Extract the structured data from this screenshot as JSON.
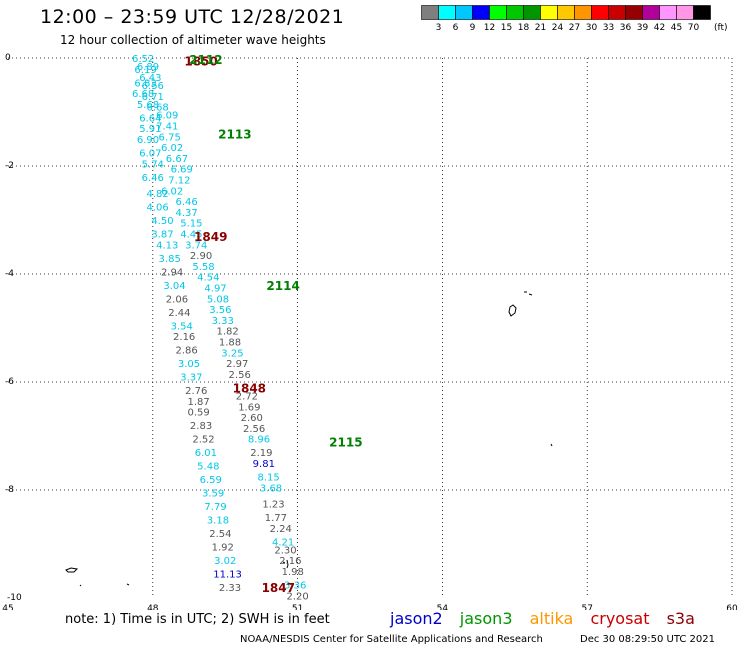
{
  "header": {
    "title": "12:00 – 23:59 UTC 12/28/2021",
    "subtitle": "12 hour collection of altimeter wave heights"
  },
  "colorbar": {
    "unit": "(ft)",
    "labels": [
      "3",
      "6",
      "9",
      "12",
      "15",
      "18",
      "21",
      "24",
      "27",
      "30",
      "33",
      "36",
      "39",
      "42",
      "45",
      "70"
    ],
    "colors": [
      "#7f7f7f",
      "#00ffff",
      "#00c8ff",
      "#0000ff",
      "#00ff00",
      "#00c800",
      "#009600",
      "#ffff00",
      "#ffc800",
      "#ff9600",
      "#ff0000",
      "#c80000",
      "#960000",
      "#b4009b",
      "#ff96ff",
      "#ff96e6",
      "#000000"
    ]
  },
  "axes": {
    "x_ticks": [
      "45",
      "48",
      "51",
      "54",
      "57",
      "60"
    ],
    "y_ticks": [
      "0",
      "-2",
      "-4",
      "-6",
      "-8",
      "-10"
    ]
  },
  "map": {
    "lon_min": 45,
    "lon_max": 60,
    "lat_min": -10,
    "lat_max": 0,
    "pass_labels": [
      {
        "text": "1850",
        "lon": 49.0,
        "lat": -0.05,
        "color": "#8b0000"
      },
      {
        "text": "2112",
        "lon": 49.1,
        "lat": -0.02,
        "color": "#008000"
      },
      {
        "text": "2113",
        "lon": 49.7,
        "lat": -1.4,
        "color": "#008000"
      },
      {
        "text": "1849",
        "lon": 49.2,
        "lat": -3.3,
        "color": "#8b0000"
      },
      {
        "text": "2114",
        "lon": 50.7,
        "lat": -4.2,
        "color": "#008000"
      },
      {
        "text": "1848",
        "lon": 50.0,
        "lat": -6.1,
        "color": "#8b0000"
      },
      {
        "text": "2115",
        "lon": 52.0,
        "lat": -7.1,
        "color": "#008000"
      },
      {
        "text": "1847",
        "lon": 50.6,
        "lat": -9.8,
        "color": "#8b0000"
      }
    ],
    "values": [
      {
        "t": "6.52",
        "lon": 47.8,
        "lat": 0.0,
        "c": "#00c8e6"
      },
      {
        "t": "6.19",
        "lon": 47.85,
        "lat": -0.2,
        "c": "#00c8e6"
      },
      {
        "t": "6.89",
        "lon": 47.9,
        "lat": -0.15,
        "c": "#00c8e6"
      },
      {
        "t": "6.43",
        "lon": 47.95,
        "lat": -0.35,
        "c": "#00c8e6"
      },
      {
        "t": "6.83",
        "lon": 47.85,
        "lat": -0.45,
        "c": "#00c8e6"
      },
      {
        "t": "6.56",
        "lon": 48.0,
        "lat": -0.5,
        "c": "#00c8e6"
      },
      {
        "t": "6.68",
        "lon": 47.8,
        "lat": -0.65,
        "c": "#00c8e6"
      },
      {
        "t": "6.71",
        "lon": 48.0,
        "lat": -0.7,
        "c": "#00c8e6"
      },
      {
        "t": "5.68",
        "lon": 47.9,
        "lat": -0.85,
        "c": "#00c8e6"
      },
      {
        "t": "6.68",
        "lon": 48.1,
        "lat": -0.9,
        "c": "#00c8e6"
      },
      {
        "t": "6.64",
        "lon": 47.95,
        "lat": -1.1,
        "c": "#00c8e6"
      },
      {
        "t": "6.09",
        "lon": 48.3,
        "lat": -1.05,
        "c": "#00c8e6"
      },
      {
        "t": "5.91",
        "lon": 47.95,
        "lat": -1.3,
        "c": "#00c8e6"
      },
      {
        "t": "7.41",
        "lon": 48.3,
        "lat": -1.25,
        "c": "#00c8e6"
      },
      {
        "t": "6.90",
        "lon": 47.9,
        "lat": -1.5,
        "c": "#00c8e6"
      },
      {
        "t": "6.75",
        "lon": 48.35,
        "lat": -1.45,
        "c": "#00c8e6"
      },
      {
        "t": "6.07",
        "lon": 47.95,
        "lat": -1.75,
        "c": "#00c8e6"
      },
      {
        "t": "6.02",
        "lon": 48.4,
        "lat": -1.65,
        "c": "#00c8e6"
      },
      {
        "t": "5.74",
        "lon": 48.0,
        "lat": -1.95,
        "c": "#00c8e6"
      },
      {
        "t": "6.67",
        "lon": 48.5,
        "lat": -1.85,
        "c": "#00c8e6"
      },
      {
        "t": "6.69",
        "lon": 48.6,
        "lat": -2.05,
        "c": "#00c8e6"
      },
      {
        "t": "6.46",
        "lon": 48.0,
        "lat": -2.2,
        "c": "#00c8e6"
      },
      {
        "t": "7.12",
        "lon": 48.55,
        "lat": -2.25,
        "c": "#00c8e6"
      },
      {
        "t": "4.82",
        "lon": 48.1,
        "lat": -2.5,
        "c": "#00c8e6"
      },
      {
        "t": "6.02",
        "lon": 48.4,
        "lat": -2.45,
        "c": "#00c8e6"
      },
      {
        "t": "6.46",
        "lon": 48.7,
        "lat": -2.65,
        "c": "#00c8e6"
      },
      {
        "t": "4.06",
        "lon": 48.1,
        "lat": -2.75,
        "c": "#00c8e6"
      },
      {
        "t": "4.37",
        "lon": 48.7,
        "lat": -2.85,
        "c": "#00c8e6"
      },
      {
        "t": "4.50",
        "lon": 48.2,
        "lat": -3.0,
        "c": "#00c8e6"
      },
      {
        "t": "5.15",
        "lon": 48.8,
        "lat": -3.05,
        "c": "#00c8e6"
      },
      {
        "t": "3.87",
        "lon": 48.2,
        "lat": -3.25,
        "c": "#00c8e6"
      },
      {
        "t": "4.45",
        "lon": 48.8,
        "lat": -3.25,
        "c": "#00c8e6"
      },
      {
        "t": "4.13",
        "lon": 48.3,
        "lat": -3.45,
        "c": "#00c8e6"
      },
      {
        "t": "3.74",
        "lon": 48.9,
        "lat": -3.45,
        "c": "#00c8e6"
      },
      {
        "t": "2.90",
        "lon": 49.0,
        "lat": -3.65,
        "c": "#555555"
      },
      {
        "t": "3.85",
        "lon": 48.35,
        "lat": -3.7,
        "c": "#00c8e6"
      },
      {
        "t": "5.58",
        "lon": 49.05,
        "lat": -3.85,
        "c": "#00c8e6"
      },
      {
        "t": "2.94",
        "lon": 48.4,
        "lat": -3.95,
        "c": "#555555"
      },
      {
        "t": "4.54",
        "lon": 49.15,
        "lat": -4.05,
        "c": "#00c8e6"
      },
      {
        "t": "3.04",
        "lon": 48.45,
        "lat": -4.2,
        "c": "#00c8e6"
      },
      {
        "t": "4.97",
        "lon": 49.3,
        "lat": -4.25,
        "c": "#00c8e6"
      },
      {
        "t": "2.06",
        "lon": 48.5,
        "lat": -4.45,
        "c": "#555555"
      },
      {
        "t": "5.08",
        "lon": 49.35,
        "lat": -4.45,
        "c": "#00c8e6"
      },
      {
        "t": "2.44",
        "lon": 48.55,
        "lat": -4.7,
        "c": "#555555"
      },
      {
        "t": "3.56",
        "lon": 49.4,
        "lat": -4.65,
        "c": "#00c8e6"
      },
      {
        "t": "3.33",
        "lon": 49.45,
        "lat": -4.85,
        "c": "#00c8e6"
      },
      {
        "t": "3.54",
        "lon": 48.6,
        "lat": -4.95,
        "c": "#00c8e6"
      },
      {
        "t": "1.82",
        "lon": 49.55,
        "lat": -5.05,
        "c": "#555555"
      },
      {
        "t": "2.16",
        "lon": 48.65,
        "lat": -5.15,
        "c": "#555555"
      },
      {
        "t": "1.88",
        "lon": 49.6,
        "lat": -5.25,
        "c": "#555555"
      },
      {
        "t": "2.86",
        "lon": 48.7,
        "lat": -5.4,
        "c": "#555555"
      },
      {
        "t": "3.25",
        "lon": 49.65,
        "lat": -5.45,
        "c": "#00c8e6"
      },
      {
        "t": "2.97",
        "lon": 49.75,
        "lat": -5.65,
        "c": "#555555"
      },
      {
        "t": "3.05",
        "lon": 48.75,
        "lat": -5.65,
        "c": "#00c8e6"
      },
      {
        "t": "2.56",
        "lon": 49.8,
        "lat": -5.85,
        "c": "#555555"
      },
      {
        "t": "3.37",
        "lon": 48.8,
        "lat": -5.9,
        "c": "#00c8e6"
      },
      {
        "t": "2.76",
        "lon": 48.9,
        "lat": -6.15,
        "c": "#555555"
      },
      {
        "t": "2.72",
        "lon": 49.95,
        "lat": -6.25,
        "c": "#555555"
      },
      {
        "t": "1.87",
        "lon": 48.95,
        "lat": -6.35,
        "c": "#555555"
      },
      {
        "t": "1.69",
        "lon": 50.0,
        "lat": -6.45,
        "c": "#555555"
      },
      {
        "t": "0.59",
        "lon": 48.95,
        "lat": -6.55,
        "c": "#555555"
      },
      {
        "t": "2.60",
        "lon": 50.05,
        "lat": -6.65,
        "c": "#555555"
      },
      {
        "t": "2.83",
        "lon": 49.0,
        "lat": -6.8,
        "c": "#555555"
      },
      {
        "t": "2.56",
        "lon": 50.1,
        "lat": -6.85,
        "c": "#555555"
      },
      {
        "t": "2.52",
        "lon": 49.05,
        "lat": -7.05,
        "c": "#555555"
      },
      {
        "t": "8.96",
        "lon": 50.2,
        "lat": -7.05,
        "c": "#00c8e6"
      },
      {
        "t": "6.01",
        "lon": 49.1,
        "lat": -7.3,
        "c": "#00c8e6"
      },
      {
        "t": "2.19",
        "lon": 50.25,
        "lat": -7.3,
        "c": "#555555"
      },
      {
        "t": "9.81",
        "lon": 50.3,
        "lat": -7.5,
        "c": "#0000c8"
      },
      {
        "t": "5.48",
        "lon": 49.15,
        "lat": -7.55,
        "c": "#00c8e6"
      },
      {
        "t": "6.59",
        "lon": 49.2,
        "lat": -7.8,
        "c": "#00c8e6"
      },
      {
        "t": "8.15",
        "lon": 50.4,
        "lat": -7.75,
        "c": "#00c8e6"
      },
      {
        "t": "3.59",
        "lon": 49.25,
        "lat": -8.05,
        "c": "#00c8e6"
      },
      {
        "t": "3.68",
        "lon": 50.45,
        "lat": -7.95,
        "c": "#00c8e6"
      },
      {
        "t": "1.23",
        "lon": 50.5,
        "lat": -8.25,
        "c": "#555555"
      },
      {
        "t": "7.79",
        "lon": 49.3,
        "lat": -8.3,
        "c": "#00c8e6"
      },
      {
        "t": "1.77",
        "lon": 50.55,
        "lat": -8.5,
        "c": "#555555"
      },
      {
        "t": "3.18",
        "lon": 49.35,
        "lat": -8.55,
        "c": "#00c8e6"
      },
      {
        "t": "2.24",
        "lon": 50.65,
        "lat": -8.7,
        "c": "#555555"
      },
      {
        "t": "2.54",
        "lon": 49.4,
        "lat": -8.8,
        "c": "#555555"
      },
      {
        "t": "4.21",
        "lon": 50.7,
        "lat": -8.95,
        "c": "#00c8e6"
      },
      {
        "t": "1.92",
        "lon": 49.45,
        "lat": -9.05,
        "c": "#555555"
      },
      {
        "t": "2.30",
        "lon": 50.75,
        "lat": -9.1,
        "c": "#555555"
      },
      {
        "t": "3.02",
        "lon": 49.5,
        "lat": -9.3,
        "c": "#00c8e6"
      },
      {
        "t": "2.16",
        "lon": 50.85,
        "lat": -9.3,
        "c": "#555555"
      },
      {
        "t": "11.13",
        "lon": 49.55,
        "lat": -9.55,
        "c": "#0000c8"
      },
      {
        "t": "1.98",
        "lon": 50.9,
        "lat": -9.5,
        "c": "#555555"
      },
      {
        "t": "2.33",
        "lon": 49.6,
        "lat": -9.8,
        "c": "#555555"
      },
      {
        "t": "3.36",
        "lon": 50.95,
        "lat": -9.75,
        "c": "#00c8e6"
      },
      {
        "t": "2.20",
        "lon": 51.0,
        "lat": -9.95,
        "c": "#555555"
      }
    ]
  },
  "footer": {
    "note": "note: 1) Time is in UTC; 2) SWH is in feet",
    "legend": [
      {
        "label": "jason2",
        "color": "#0000c8"
      },
      {
        "label": "jason3",
        "color": "#009600"
      },
      {
        "label": "altika",
        "color": "#ff9600"
      },
      {
        "label": "cryosat",
        "color": "#c80000"
      },
      {
        "label": "s3a",
        "color": "#8b0000"
      }
    ],
    "credit": "NOAA/NESDIS Center for Satellite Applications and Research",
    "timestamp": "Dec 30 08:29:50 UTC 2021"
  }
}
